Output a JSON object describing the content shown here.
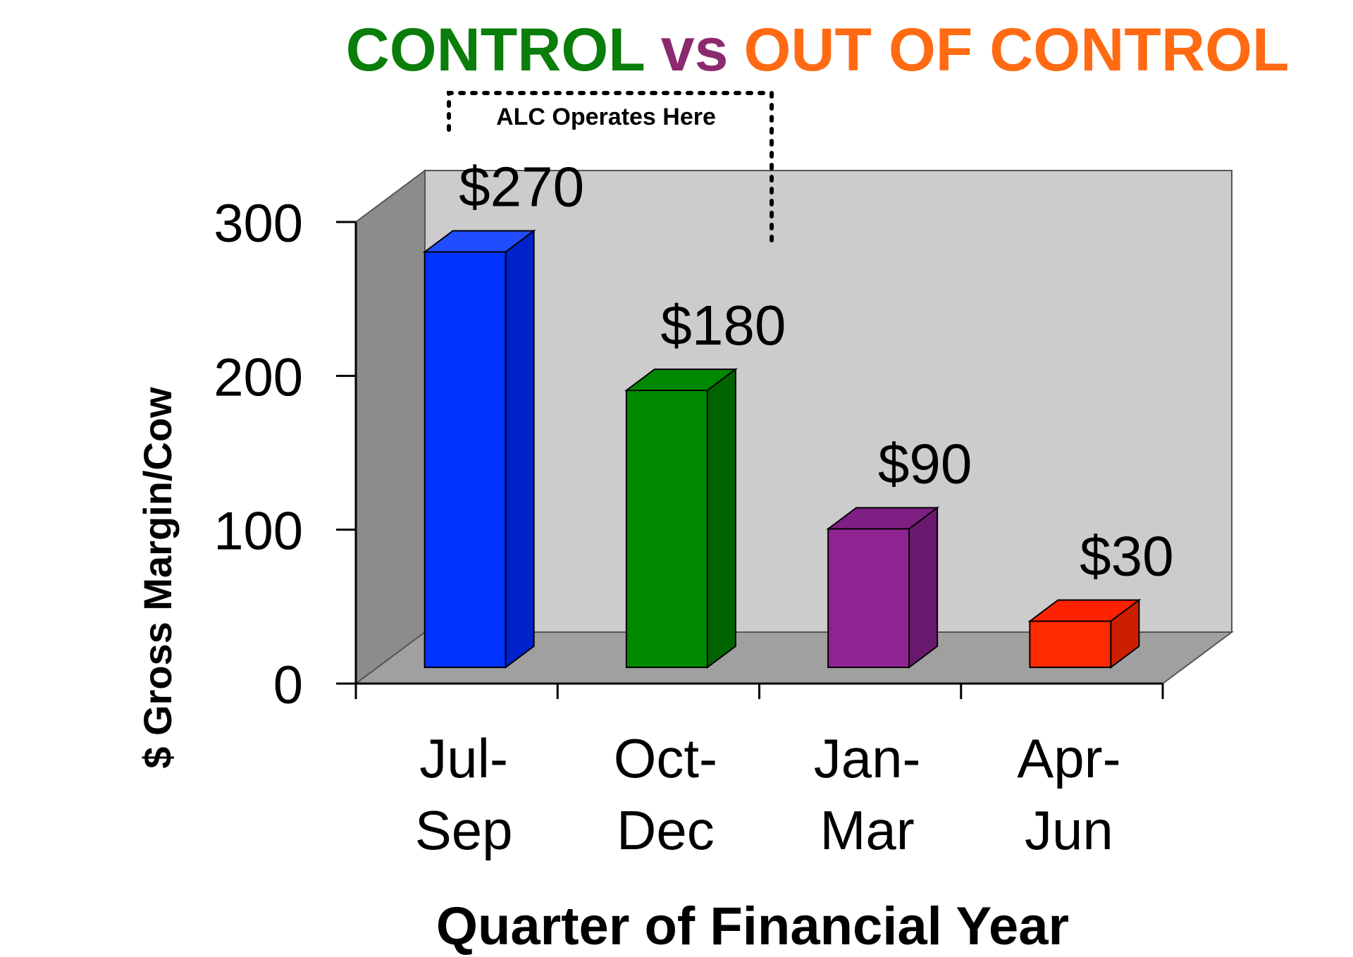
{
  "title": {
    "part1": "CONTROL",
    "part2": "vs",
    "part3": "OUT OF CONTROL",
    "colors": {
      "part1": "#0a7d0a",
      "part2": "#8b2a6e",
      "part3": "#ff6a13"
    }
  },
  "annotation": {
    "text": "ALC Operates Here"
  },
  "chart_data": {
    "type": "bar",
    "style": "3d",
    "categories": [
      {
        "line1": "Jul-",
        "line2": "Sep"
      },
      {
        "line1": "Oct-",
        "line2": "Dec"
      },
      {
        "line1": "Jan-",
        "line2": "Mar"
      },
      {
        "line1": "Apr-",
        "line2": "Jun"
      }
    ],
    "values": [
      270,
      180,
      90,
      30
    ],
    "value_labels": [
      "$270",
      "$180",
      "$90",
      "$30"
    ],
    "bar_colors": [
      {
        "front": "#0033ff",
        "top": "#1f4dff",
        "side": "#0022cc"
      },
      {
        "front": "#008a00",
        "top": "#008800",
        "side": "#006400"
      },
      {
        "front": "#8e2392",
        "top": "#7f1f84",
        "side": "#6a1a6e"
      },
      {
        "front": "#ff2a00",
        "top": "#ff2200",
        "side": "#cc1f00"
      }
    ],
    "ylim": [
      0,
      300
    ],
    "yticks": [
      "0",
      "100",
      "200",
      "300"
    ],
    "xlabel": "Quarter of Financial Year",
    "ylabel": "$ Gross Margin/Cow",
    "wall_color": "#cccccc",
    "floor_color": "#a0a0a0",
    "side_wall_color": "#8c8c8c"
  }
}
